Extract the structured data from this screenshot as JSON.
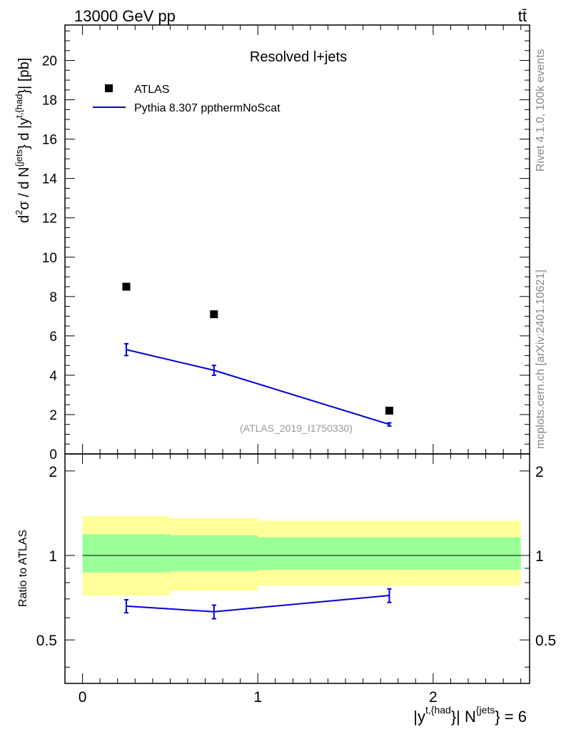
{
  "header": {
    "energy_label": "13000 GeV pp",
    "process_label": "tt̄"
  },
  "side_labels": {
    "rivet": "Rivet 4.1.0,  100k events",
    "mcplots": "mcplots.cern.ch [arXiv:2401.10621]"
  },
  "analysis_id": "(ATLAS_2019_I1750330)",
  "colors": {
    "data": "#000000",
    "mc": "#0000dd",
    "band_green": "#99ff99",
    "band_yellow": "#ffff99",
    "analysis_text": "#999999",
    "side_text": "#888888"
  },
  "chart_data": [
    {
      "type": "scatter",
      "title": "Resolved l+jets",
      "ylabel": "d²σ / d N^{jets} d |y^{t,{had}}| [pb]",
      "xlim": [
        -0.1,
        2.55
      ],
      "ylim": [
        0,
        21.8
      ],
      "yticks": [
        0,
        2,
        4,
        6,
        8,
        10,
        12,
        14,
        16,
        18,
        20
      ],
      "ytick_labels": [
        "0",
        "2",
        "4",
        "6",
        "8",
        "10",
        "12",
        "14",
        "16",
        "18",
        "20"
      ],
      "legend": {
        "position": "top-left",
        "entries": [
          "ATLAS",
          "Pythia 8.307 ppthermNoScat"
        ]
      },
      "series": [
        {
          "name": "ATLAS",
          "marker": "square",
          "x": [
            0.25,
            0.75,
            1.75
          ],
          "y": [
            8.5,
            7.1,
            2.2
          ]
        },
        {
          "name": "Pythia 8.307 ppthermNoScat",
          "marker": "line",
          "x": [
            0.25,
            0.75,
            1.75
          ],
          "y": [
            5.3,
            4.25,
            1.5
          ],
          "yerr": [
            0.3,
            0.25,
            0.08
          ]
        }
      ]
    },
    {
      "type": "line",
      "ylabel": "Ratio to ATLAS",
      "xlabel_main": "|y",
      "xlabel_sup1": "t,{had",
      "xlabel_mid": "}| N",
      "xlabel_sup2": "{jets",
      "xlabel_end": "} = 6",
      "xlim": [
        -0.1,
        2.55
      ],
      "ylim": [
        0.35,
        2.3
      ],
      "yticks": [
        0.5,
        1,
        2
      ],
      "ytick_labels": [
        "0.5",
        "1",
        "2"
      ],
      "xticks": [
        0,
        1,
        2
      ],
      "xtick_labels": [
        "0",
        "1",
        "2"
      ],
      "reference_line": 1.0,
      "bins": [
        {
          "x0": 0.0,
          "x1": 0.5,
          "green": [
            0.87,
            1.19
          ],
          "yellow": [
            0.72,
            1.38
          ]
        },
        {
          "x0": 0.5,
          "x1": 1.0,
          "green": [
            0.88,
            1.18
          ],
          "yellow": [
            0.75,
            1.36
          ]
        },
        {
          "x0": 1.0,
          "x1": 2.5,
          "green": [
            0.89,
            1.16
          ],
          "yellow": [
            0.78,
            1.33
          ]
        }
      ],
      "series": [
        {
          "name": "Pythia 8.307 ppthermNoScat",
          "x": [
            0.25,
            0.75,
            1.75
          ],
          "y": [
            0.66,
            0.63,
            0.72
          ],
          "yerr": [
            0.035,
            0.035,
            0.04
          ]
        }
      ]
    }
  ]
}
